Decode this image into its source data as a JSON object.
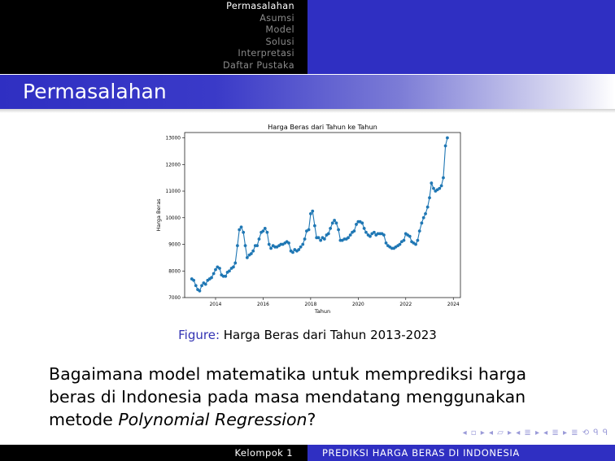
{
  "nav": {
    "items": [
      "Permasalahan",
      "Asumsi",
      "Model",
      "Solusi",
      "Interpretasi",
      "Daftar Pustaka"
    ],
    "active_index": 0
  },
  "slide": {
    "title": "Permasalahan",
    "caption_label": "Figure:",
    "caption_text": "Harga Beras dari Tahun 2013-2023",
    "question_prefix": "Bagaimana model matematika untuk memprediksi harga beras di Indonesia pada masa mendatang menggunakan metode ",
    "question_emph": "Polynomial Regression",
    "question_suffix": "?"
  },
  "footer": {
    "left": "Kelompok 1",
    "right": "PREDIKSI HARGA BERAS DI INDONESIA",
    "nav_symbols": "◂ ▫ ▸ ◂ ▱ ▸ ◂ ≣ ▸ ◂ ≣ ▸   ≣   ⟲ ᑫ ᑫ"
  },
  "colors": {
    "header_black": "#000000",
    "header_blue": "#2f2fc2",
    "series": "#1f77b4",
    "caption_label": "#3333b3"
  },
  "chart_data": {
    "type": "line",
    "title": "Harga Beras dari Tahun ke Tahun",
    "xlabel": "Tahun",
    "ylabel": "Harga Beras",
    "xlim": [
      2012.7,
      2024.3
    ],
    "ylim": [
      7000,
      13200
    ],
    "xticks": [
      2014,
      2016,
      2018,
      2020,
      2022,
      2024
    ],
    "yticks": [
      7000,
      8000,
      9000,
      10000,
      11000,
      12000,
      13000
    ],
    "grid": false,
    "series": [
      {
        "marker": "circle",
        "x": [
          2013.0,
          2013.08,
          2013.17,
          2013.25,
          2013.33,
          2013.42,
          2013.5,
          2013.58,
          2013.67,
          2013.75,
          2013.83,
          2013.92,
          2014.0,
          2014.08,
          2014.17,
          2014.25,
          2014.33,
          2014.42,
          2014.5,
          2014.58,
          2014.67,
          2014.75,
          2014.83,
          2014.92,
          2015.0,
          2015.08,
          2015.17,
          2015.25,
          2015.33,
          2015.42,
          2015.5,
          2015.58,
          2015.67,
          2015.75,
          2015.83,
          2015.92,
          2016.0,
          2016.08,
          2016.17,
          2016.25,
          2016.33,
          2016.42,
          2016.5,
          2016.58,
          2016.67,
          2016.75,
          2016.83,
          2016.92,
          2017.0,
          2017.08,
          2017.17,
          2017.25,
          2017.33,
          2017.42,
          2017.5,
          2017.58,
          2017.67,
          2017.75,
          2017.83,
          2017.92,
          2018.0,
          2018.08,
          2018.17,
          2018.25,
          2018.33,
          2018.42,
          2018.5,
          2018.58,
          2018.67,
          2018.75,
          2018.83,
          2018.92,
          2019.0,
          2019.08,
          2019.17,
          2019.25,
          2019.33,
          2019.42,
          2019.5,
          2019.58,
          2019.67,
          2019.75,
          2019.83,
          2019.92,
          2020.0,
          2020.08,
          2020.17,
          2020.25,
          2020.33,
          2020.42,
          2020.5,
          2020.58,
          2020.67,
          2020.75,
          2020.83,
          2020.92,
          2021.0,
          2021.08,
          2021.17,
          2021.25,
          2021.33,
          2021.42,
          2021.5,
          2021.58,
          2021.67,
          2021.75,
          2021.83,
          2021.92,
          2022.0,
          2022.08,
          2022.17,
          2022.25,
          2022.33,
          2022.42,
          2022.5,
          2022.58,
          2022.67,
          2022.75,
          2022.83,
          2022.92,
          2023.0,
          2023.08,
          2023.17,
          2023.25,
          2023.33,
          2023.42,
          2023.5,
          2023.58,
          2023.67,
          2023.75
        ],
        "y": [
          7700,
          7650,
          7450,
          7300,
          7250,
          7450,
          7550,
          7500,
          7650,
          7700,
          7750,
          7900,
          8050,
          8150,
          8100,
          7850,
          7800,
          7800,
          7950,
          8000,
          8100,
          8150,
          8300,
          8950,
          9550,
          9650,
          9450,
          8950,
          8500,
          8600,
          8650,
          8750,
          8950,
          8950,
          9200,
          9450,
          9500,
          9600,
          9450,
          9000,
          8850,
          8950,
          8900,
          8900,
          8950,
          9000,
          9000,
          9050,
          9100,
          9050,
          8750,
          8700,
          8800,
          8750,
          8800,
          8900,
          9000,
          9200,
          9500,
          9550,
          10150,
          10250,
          9700,
          9250,
          9250,
          9150,
          9250,
          9200,
          9350,
          9400,
          9600,
          9800,
          9900,
          9800,
          9550,
          9150,
          9150,
          9200,
          9200,
          9250,
          9350,
          9450,
          9500,
          9750,
          9850,
          9850,
          9800,
          9600,
          9450,
          9350,
          9300,
          9400,
          9450,
          9350,
          9400,
          9400,
          9400,
          9350,
          9050,
          8950,
          8900,
          8850,
          8850,
          8900,
          8950,
          9000,
          9100,
          9150,
          9400,
          9350,
          9300,
          9100,
          9050,
          9000,
          9150,
          9500,
          9800,
          10000,
          10150,
          10400,
          10750,
          11300,
          11100,
          11000,
          11050,
          11100,
          11200,
          11500,
          12700,
          13000
        ]
      }
    ]
  }
}
